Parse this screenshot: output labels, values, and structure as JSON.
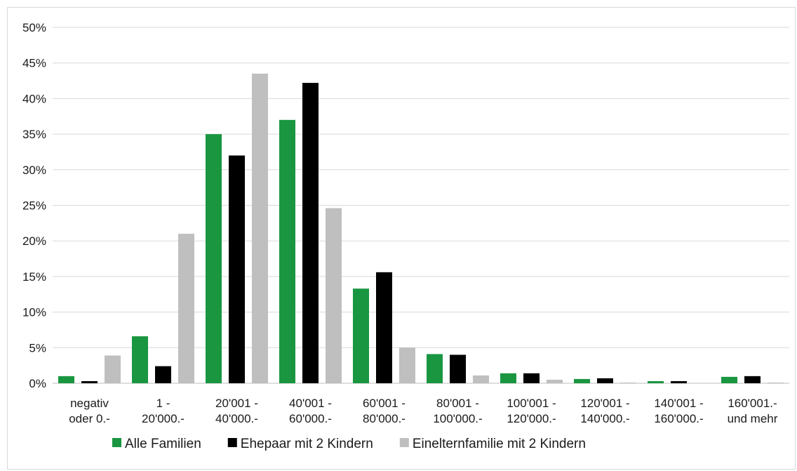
{
  "chart_data": {
    "type": "bar",
    "title": "",
    "xlabel": "",
    "ylabel": "",
    "ylim": [
      0,
      50
    ],
    "y_tick_step": 5,
    "y_tick_suffix": "%",
    "grid": true,
    "legend_position": "bottom",
    "categories": [
      [
        "negativ",
        "oder 0.-"
      ],
      [
        "1 -",
        "20'000.-"
      ],
      [
        "20'001 -",
        "40'000.-"
      ],
      [
        "40'001 -",
        "60'000.-"
      ],
      [
        "60'001 -",
        "80'000.-"
      ],
      [
        "80'001 -",
        "100'000.-"
      ],
      [
        "100'001 -",
        "120'000.-"
      ],
      [
        "120'001 -",
        "140'000.-"
      ],
      [
        "140'001 -",
        "160'000.-"
      ],
      [
        "160'001.-",
        "und mehr"
      ]
    ],
    "series": [
      {
        "name": "Alle Familien",
        "color": "#1a9641",
        "values": [
          1.0,
          6.6,
          35.0,
          37.0,
          13.3,
          4.1,
          1.4,
          0.6,
          0.3,
          0.9
        ]
      },
      {
        "name": "Ehepaar mit 2 Kindern",
        "color": "#000000",
        "values": [
          0.3,
          2.4,
          32.0,
          42.2,
          15.6,
          4.0,
          1.4,
          0.7,
          0.3,
          1.0
        ]
      },
      {
        "name": "Einelternfamilie mit 2 Kindern",
        "color": "#bfbfbf",
        "values": [
          3.9,
          21.0,
          43.5,
          24.6,
          5.0,
          1.1,
          0.5,
          0.1,
          0.05,
          0.1
        ]
      }
    ]
  }
}
